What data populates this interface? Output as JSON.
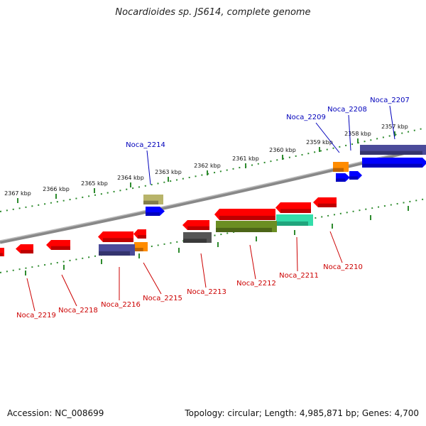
{
  "title": "Nocardioides sp. JS614, complete genome",
  "footer": {
    "accession": "Accession: NC_008699",
    "stats": "Topology: circular; Length: 4,985,871 bp; Genes: 4,700"
  },
  "ticks": [
    "2357 kbp",
    "2358 kbp",
    "2359 kbp",
    "2360 kbp",
    "2361 kbp",
    "2362 kbp",
    "2363 kbp",
    "2364 kbp",
    "2365 kbp",
    "2366 kbp",
    "2367 kbp"
  ],
  "forward_labels": [
    "Noca_2207",
    "Noca_2208",
    "Noca_2209",
    "Noca_2214"
  ],
  "reverse_labels": [
    "Noca_2210",
    "Noca_2211",
    "Noca_2212",
    "Noca_2213",
    "Noca_2215",
    "Noca_2216",
    "Noca_2218",
    "Noca_2219"
  ],
  "colors": {
    "forward_gene": "#0000ff",
    "reverse_gene": "#ff0000",
    "backbone": "#888888",
    "tick_dots": "#2e8b2e",
    "forward_label": "#0000bb",
    "reverse_label": "#cc0000"
  }
}
